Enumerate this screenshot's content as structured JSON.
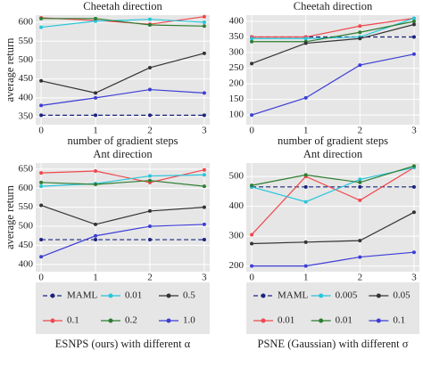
{
  "chart_data": [
    {
      "type": "line",
      "title": "Cheetah direction",
      "xlabel": "number of gradient steps",
      "ylabel": "average return",
      "x": [
        0,
        1,
        2,
        3
      ],
      "xlim": [
        -0.1,
        3.1
      ],
      "xticks": [
        0,
        1,
        2,
        3
      ],
      "ylim": [
        329,
        619
      ],
      "yticks": [
        350,
        400,
        450,
        500,
        550,
        600
      ],
      "grid": true,
      "series": [
        {
          "name": "MAML",
          "color": "#1a237e",
          "style": "dashed",
          "values": [
            354,
            354,
            354,
            354
          ]
        },
        {
          "name": "0.1",
          "color": "#f0484e",
          "values": [
            612,
            605,
            595,
            615
          ]
        },
        {
          "name": "0.01",
          "color": "#26c6da",
          "values": [
            587,
            603,
            608,
            600
          ]
        },
        {
          "name": "0.2",
          "color": "#2e7d32",
          "values": [
            610,
            610,
            593,
            590
          ]
        },
        {
          "name": "0.5",
          "color": "#333333",
          "values": [
            445,
            413,
            480,
            518
          ]
        },
        {
          "name": "1.0",
          "color": "#3d3dd6",
          "values": [
            380,
            400,
            422,
            413
          ]
        }
      ]
    },
    {
      "type": "line",
      "title": "Cheetah direction",
      "xlabel": "number of gradient steps",
      "x": [
        0,
        1,
        2,
        3
      ],
      "xlim": [
        -0.1,
        3.1
      ],
      "xticks": [
        0,
        1,
        2,
        3
      ],
      "ylim": [
        69,
        420
      ],
      "yticks": [
        100,
        150,
        200,
        250,
        300,
        350,
        400
      ],
      "grid": true,
      "series": [
        {
          "name": "MAML",
          "color": "#1a237e",
          "style": "dashed",
          "values": [
            350,
            350,
            350,
            350
          ]
        },
        {
          "name": "0.01",
          "color": "#f0484e",
          "values": [
            350,
            350,
            385,
            410
          ]
        },
        {
          "name": "0.005",
          "color": "#26c6da",
          "values": [
            345,
            345,
            350,
            410
          ]
        },
        {
          "name": "0.01",
          "color": "#2e7d32",
          "values": [
            335,
            335,
            365,
            400
          ]
        },
        {
          "name": "0.05",
          "color": "#333333",
          "values": [
            265,
            330,
            345,
            390
          ]
        },
        {
          "name": "0.1",
          "color": "#3d3dd6",
          "values": [
            100,
            155,
            260,
            295
          ]
        }
      ]
    },
    {
      "type": "line",
      "title": "Ant direction",
      "xlabel": "number of gradient steps",
      "ylabel": "average return",
      "legend_title": "ESNPS (ours) with different α",
      "x": [
        0,
        1,
        2,
        3
      ],
      "xlim": [
        -0.1,
        3.1
      ],
      "xticks": [
        0,
        1,
        2,
        3
      ],
      "ylim": [
        381,
        666
      ],
      "yticks": [
        400,
        450,
        500,
        550,
        600,
        650
      ],
      "grid": true,
      "series": [
        {
          "name": "MAML",
          "color": "#1a237e",
          "style": "dashed",
          "values": [
            465,
            465,
            465,
            465
          ]
        },
        {
          "name": "0.1",
          "color": "#f0484e",
          "values": [
            640,
            645,
            615,
            648
          ]
        },
        {
          "name": "0.01",
          "color": "#26c6da",
          "values": [
            605,
            612,
            632,
            635
          ]
        },
        {
          "name": "0.2",
          "color": "#2e7d32",
          "values": [
            615,
            610,
            620,
            605
          ]
        },
        {
          "name": "0.5",
          "color": "#333333",
          "values": [
            555,
            505,
            540,
            550
          ]
        },
        {
          "name": "1.0",
          "color": "#3d3dd6",
          "values": [
            420,
            475,
            500,
            505
          ]
        }
      ]
    },
    {
      "type": "line",
      "title": "Ant direction",
      "xlabel": "number of gradient steps",
      "legend_title": "PSNE (Gaussian) with different σ",
      "x": [
        0,
        1,
        2,
        3
      ],
      "xlim": [
        -0.1,
        3.1
      ],
      "xticks": [
        0,
        1,
        2,
        3
      ],
      "ylim": [
        181,
        545
      ],
      "yticks": [
        200,
        300,
        400,
        500
      ],
      "grid": true,
      "series": [
        {
          "name": "MAML",
          "color": "#1a237e",
          "style": "dashed",
          "values": [
            465,
            465,
            465,
            465
          ]
        },
        {
          "name": "0.01",
          "color": "#f0484e",
          "values": [
            305,
            500,
            420,
            530
          ]
        },
        {
          "name": "0.005",
          "color": "#26c6da",
          "values": [
            465,
            415,
            490,
            530
          ]
        },
        {
          "name": "0.01",
          "color": "#2e7d32",
          "values": [
            470,
            505,
            480,
            535
          ]
        },
        {
          "name": "0.05",
          "color": "#333333",
          "values": [
            275,
            280,
            285,
            380
          ]
        },
        {
          "name": "0.1",
          "color": "#3d3dd6",
          "values": [
            200,
            200,
            230,
            246
          ]
        }
      ]
    }
  ]
}
